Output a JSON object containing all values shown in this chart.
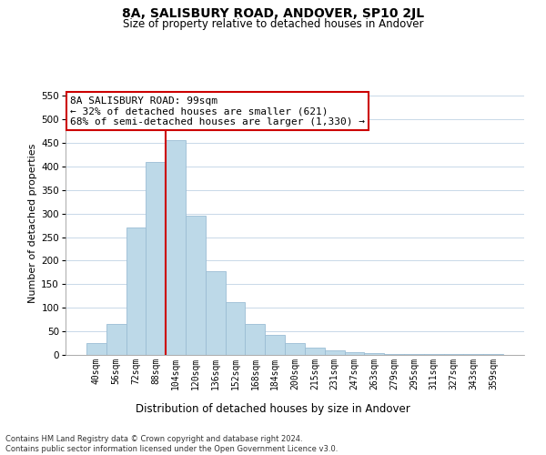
{
  "title": "8A, SALISBURY ROAD, ANDOVER, SP10 2JL",
  "subtitle": "Size of property relative to detached houses in Andover",
  "xlabel": "Distribution of detached houses by size in Andover",
  "ylabel": "Number of detached properties",
  "bar_labels": [
    "40sqm",
    "56sqm",
    "72sqm",
    "88sqm",
    "104sqm",
    "120sqm",
    "136sqm",
    "152sqm",
    "168sqm",
    "184sqm",
    "200sqm",
    "215sqm",
    "231sqm",
    "247sqm",
    "263sqm",
    "279sqm",
    "295sqm",
    "311sqm",
    "327sqm",
    "343sqm",
    "359sqm"
  ],
  "bar_values": [
    25,
    65,
    270,
    410,
    455,
    295,
    177,
    112,
    65,
    43,
    25,
    15,
    10,
    5,
    3,
    2,
    2,
    1,
    1,
    1,
    1
  ],
  "bar_color": "#bdd9e8",
  "bar_edge_color": "#9bbdd4",
  "vline_position": 3.5,
  "vline_color": "#cc0000",
  "annotation_title": "8A SALISBURY ROAD: 99sqm",
  "annotation_line1": "← 32% of detached houses are smaller (621)",
  "annotation_line2": "68% of semi-detached houses are larger (1,330) →",
  "annotation_box_facecolor": "#ffffff",
  "annotation_box_edgecolor": "#cc0000",
  "ylim": [
    0,
    560
  ],
  "yticks": [
    0,
    50,
    100,
    150,
    200,
    250,
    300,
    350,
    400,
    450,
    500,
    550
  ],
  "footer_line1": "Contains HM Land Registry data © Crown copyright and database right 2024.",
  "footer_line2": "Contains public sector information licensed under the Open Government Licence v3.0.",
  "bg_color": "#ffffff",
  "grid_color": "#c8d8e8"
}
